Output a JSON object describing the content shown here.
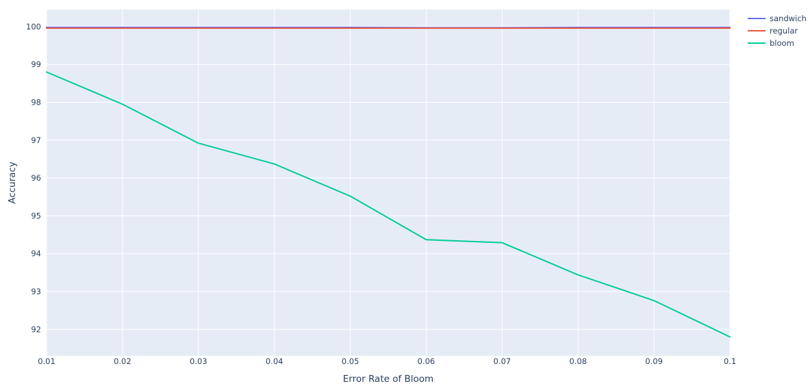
{
  "chart_data": {
    "type": "line",
    "xlabel": "Error Rate of Bloom",
    "ylabel": "Accuracy",
    "x": [
      0.01,
      0.02,
      0.03,
      0.04,
      0.05,
      0.06,
      0.07,
      0.08,
      0.09,
      0.1
    ],
    "xlim": [
      0.01,
      0.1
    ],
    "ylim": [
      91.3,
      100.45
    ],
    "x_ticks": [
      0.01,
      0.02,
      0.03,
      0.04,
      0.05,
      0.06,
      0.07,
      0.08,
      0.09,
      0.1
    ],
    "x_tick_labels": [
      "0.01",
      "0.02",
      "0.03",
      "0.04",
      "0.05",
      "0.06",
      "0.07",
      "0.08",
      "0.09",
      "0.1"
    ],
    "y_ticks": [
      92,
      93,
      94,
      95,
      96,
      97,
      98,
      99,
      100
    ],
    "y_tick_labels": [
      "92",
      "93",
      "94",
      "95",
      "96",
      "97",
      "98",
      "99",
      "100"
    ],
    "grid": true,
    "legend_position": "top-right",
    "plot_background": "#e5ecf6",
    "grid_color": "#ffffff",
    "series": [
      {
        "name": "sandwich",
        "color": "#636efa",
        "values": [
          99.98,
          99.98,
          99.98,
          99.98,
          99.98,
          99.97,
          99.97,
          99.98,
          99.98,
          99.98
        ]
      },
      {
        "name": "regular",
        "color": "#ef553b",
        "values": [
          99.96,
          99.96,
          99.96,
          99.96,
          99.96,
          99.96,
          99.96,
          99.96,
          99.96,
          99.96
        ]
      },
      {
        "name": "bloom",
        "color": "#00cc96",
        "values": [
          98.8,
          97.95,
          96.92,
          96.37,
          95.52,
          94.37,
          94.29,
          93.44,
          92.76,
          91.8
        ]
      }
    ]
  }
}
